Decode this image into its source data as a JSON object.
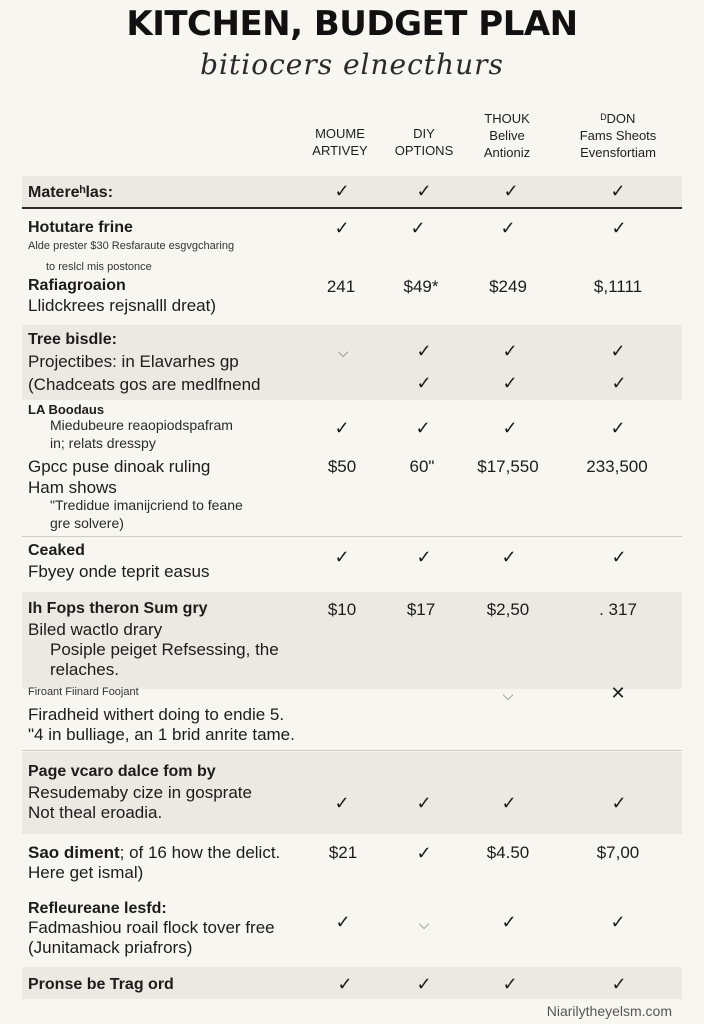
{
  "header": {
    "title": "KITCHEN, BUDGET PLAN",
    "subtitle": "bitiocers elnecthurs"
  },
  "columns": [
    {
      "line1": "",
      "line2": "MOUME",
      "line3": "ARTIVEY"
    },
    {
      "line1": "",
      "line2": "DIY",
      "line3": "OPTIONS"
    },
    {
      "line1": "THOUK",
      "line2": "Belive",
      "line3": "Antioniz"
    },
    {
      "line1": "ᴰDON",
      "line2": "Fams Sheots",
      "line3": "Evensfortiam"
    }
  ],
  "icons": {
    "check": "check-icon",
    "faint_check": "faint-check-icon",
    "cross": "cross-icon"
  },
  "rows": {
    "materials": {
      "label": "Matereʰlas:",
      "c1": "✓",
      "c2": "✓",
      "c3": "✓",
      "c4": "✓"
    },
    "hotutare": {
      "label": "Hotutare frine",
      "c1": "✓",
      "c2": "✓",
      "c3": "✓",
      "c4": "✓",
      "note1": "Alde prester $30 Resfaraute esgvgcharing",
      "note2": "to reslcl mis postonce"
    },
    "rafiagroaion": {
      "label": "Rafiagroaion",
      "sub": "Llidckrees rejsnalll dreat)",
      "c1": "241",
      "c2": "$49*",
      "c3": "$249",
      "c4": "$,1111"
    },
    "tree": {
      "label": "Tree bisdle:",
      "line2": "Projectibes: in Elavarhes gp",
      "line3": "(Chadceats gos are medlfnend",
      "r1": {
        "c1": "⌵",
        "c2": "✓",
        "c3": "✓",
        "c4": "✓"
      },
      "r2": {
        "c1": "",
        "c2": "✓",
        "c3": "✓",
        "c4": "✓"
      }
    },
    "la": {
      "label": "LA Boodaus",
      "line2": "Miedubeure reaopiodspafram",
      "line3": "in; relats dresspy",
      "c1": "✓",
      "c2": "✓",
      "c3": "✓",
      "c4": "✓"
    },
    "gpc": {
      "label": "Gpcc puse dinoak ruling",
      "line2": "Ham shows",
      "line3": "\"Tredidue imanijcriend to feane",
      "line4": "gre solvere)",
      "c1": "$50",
      "c2": "60\"",
      "c3": "$17,550",
      "c4": "233,500"
    },
    "ceaked": {
      "label": "Ceaked",
      "sub": "Fbyey onde teprit easus",
      "c1": "✓",
      "c2": "✓",
      "c3": "✓",
      "c4": "✓"
    },
    "fops": {
      "label": "Ih Fops theron Sum gry",
      "line2": "Biled wactlo drary",
      "line3": "Posiple peiget Refsessing, the",
      "line4": "relaches.",
      "c1": "$10",
      "c2": "$17",
      "c3": "$2,50",
      "c4": ". 317"
    },
    "firoant": {
      "label": "Firoant Fiinard Foojant",
      "line2": "Firadheid withert doing to endie 5.",
      "line3": "\"4 in bulliage, an 1 brid anrite tame.",
      "c3": "⌵",
      "c4": "✕"
    },
    "page": {
      "label": "Page vcaro dalce fom by",
      "line2": "Resudemaby cize in gosprate",
      "line3": "Not theal eroadia.",
      "c1": "✓",
      "c2": "✓",
      "c3": "✓",
      "c4": "✓"
    },
    "sao": {
      "label": "Sao diment",
      "label_rest": "; of 16 how the delict.",
      "line2": "Here get ismal)",
      "c1": "$21",
      "c2": "✓",
      "c3": "$4.50",
      "c4": "$7,00"
    },
    "refleureane": {
      "label": "Refleureane lesfd:",
      "line2": "Fadmashiou roail flock tover free",
      "line3": "(Junitamack priafrors)",
      "c1": "✓",
      "c2": "⌵",
      "c3": "✓",
      "c4": "✓"
    },
    "pronse": {
      "label": "Pronse be Trag ord",
      "c1": "✓",
      "c2": "✓",
      "c3": "✓",
      "c4": "✓"
    }
  },
  "footer": {
    "credit": "Niarilytheyelsm.com"
  }
}
